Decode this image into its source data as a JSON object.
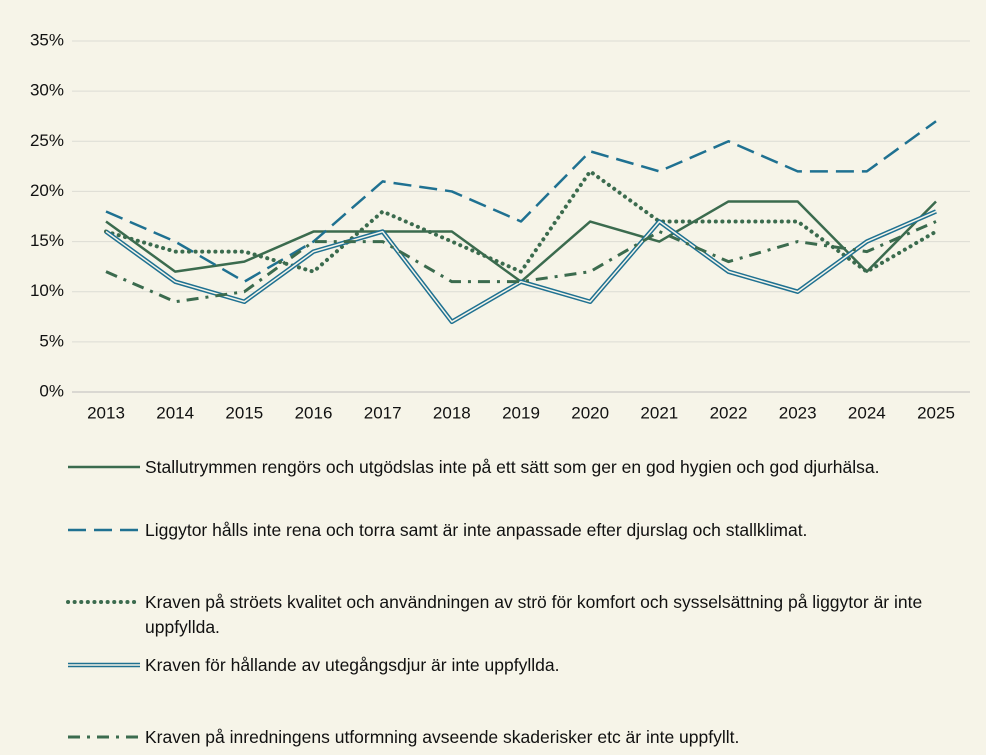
{
  "chart_data": {
    "type": "line",
    "categories": [
      "2013",
      "2014",
      "2015",
      "2016",
      "2017",
      "2018",
      "2019",
      "2020",
      "2021",
      "2022",
      "2023",
      "2024",
      "2025"
    ],
    "ylim": [
      0,
      35
    ],
    "yticks": [
      {
        "value": 0,
        "label": "0%"
      },
      {
        "value": 5,
        "label": "5%"
      },
      {
        "value": 10,
        "label": "10%"
      },
      {
        "value": 15,
        "label": "15%"
      },
      {
        "value": 20,
        "label": "20%"
      },
      {
        "value": 25,
        "label": "25%"
      },
      {
        "value": 30,
        "label": "30%"
      },
      {
        "value": 35,
        "label": "35%"
      }
    ],
    "grid": true,
    "series": [
      {
        "name": "Stallutrymmen rengörs och utgödslas inte på ett sätt som ger en god hygien och god djurhälsa.",
        "color": "#3b6b4e",
        "style": "solid",
        "values": [
          17,
          12,
          13,
          16,
          16,
          16,
          11,
          17,
          15,
          19,
          19,
          12,
          19
        ]
      },
      {
        "name": "Liggytor hålls inte rena och torra samt är inte anpassade efter djurslag och stallklimat.",
        "color": "#1f7191",
        "style": "dashed",
        "values": [
          18,
          15,
          11,
          15,
          21,
          20,
          17,
          24,
          22,
          25,
          22,
          22,
          27
        ]
      },
      {
        "name": "Kraven på ströets kvalitet och användningen av strö för komfort och sysselsättning på liggytor är inte uppfyllda.",
        "color": "#3b6b4e",
        "style": "dotted",
        "values": [
          16,
          14,
          14,
          12,
          18,
          15,
          12,
          22,
          17,
          17,
          17,
          12,
          16
        ]
      },
      {
        "name": "Kraven för hållande av utegångsdjur är inte uppfyllda.",
        "color": "#1f7191",
        "style": "double",
        "values": [
          16,
          11,
          9,
          14,
          16,
          7,
          11,
          9,
          17,
          12,
          10,
          15,
          18
        ]
      },
      {
        "name": "Kraven på inredningens utformning avseende skaderisker etc är inte uppfyllt.",
        "color": "#3b6b4e",
        "style": "dashdot",
        "values": [
          12,
          9,
          10,
          15,
          15,
          11,
          11,
          12,
          16,
          13,
          15,
          14,
          17
        ]
      }
    ]
  }
}
